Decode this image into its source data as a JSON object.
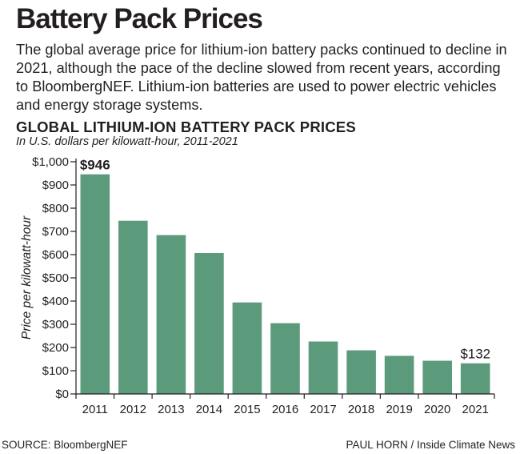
{
  "header": {
    "title": "Battery Pack Prices",
    "description": "The global average price for lithium-ion battery packs continued to decline in 2021, although the pace of the decline slowed from recent years, according to BloombergNEF. Lithium-ion batteries are used to power electric vehicles and energy storage systems."
  },
  "chart_data": {
    "type": "bar",
    "title": "GLOBAL LITHIUM-ION BATTERY PACK PRICES",
    "subtitle": "In U.S. dollars per kilowatt-hour, 2011-2021",
    "xlabel": "",
    "ylabel": "Price per kilowatt-hour",
    "categories": [
      "2011",
      "2012",
      "2013",
      "2014",
      "2015",
      "2016",
      "2017",
      "2018",
      "2019",
      "2020",
      "2021"
    ],
    "values": [
      946,
      746,
      684,
      607,
      394,
      305,
      226,
      188,
      164,
      143,
      132
    ],
    "ylim": [
      0,
      1000
    ],
    "yticks": [
      0,
      100,
      200,
      300,
      400,
      500,
      600,
      700,
      800,
      900,
      1000
    ],
    "ytick_labels": [
      "$0",
      "$100",
      "$200",
      "$300",
      "$400",
      "$500",
      "$600",
      "$700",
      "$800",
      "$900",
      "$1,000"
    ],
    "annotations": [
      {
        "index": 0,
        "text": "$946",
        "bold": true
      },
      {
        "index": 10,
        "text": "$132",
        "bold": false
      }
    ],
    "bar_color": "#5b9b7c",
    "axis_color": "#231f20"
  },
  "footer": {
    "source": "SOURCE: BloombergNEF",
    "credit": "PAUL HORN / Inside Climate News"
  }
}
